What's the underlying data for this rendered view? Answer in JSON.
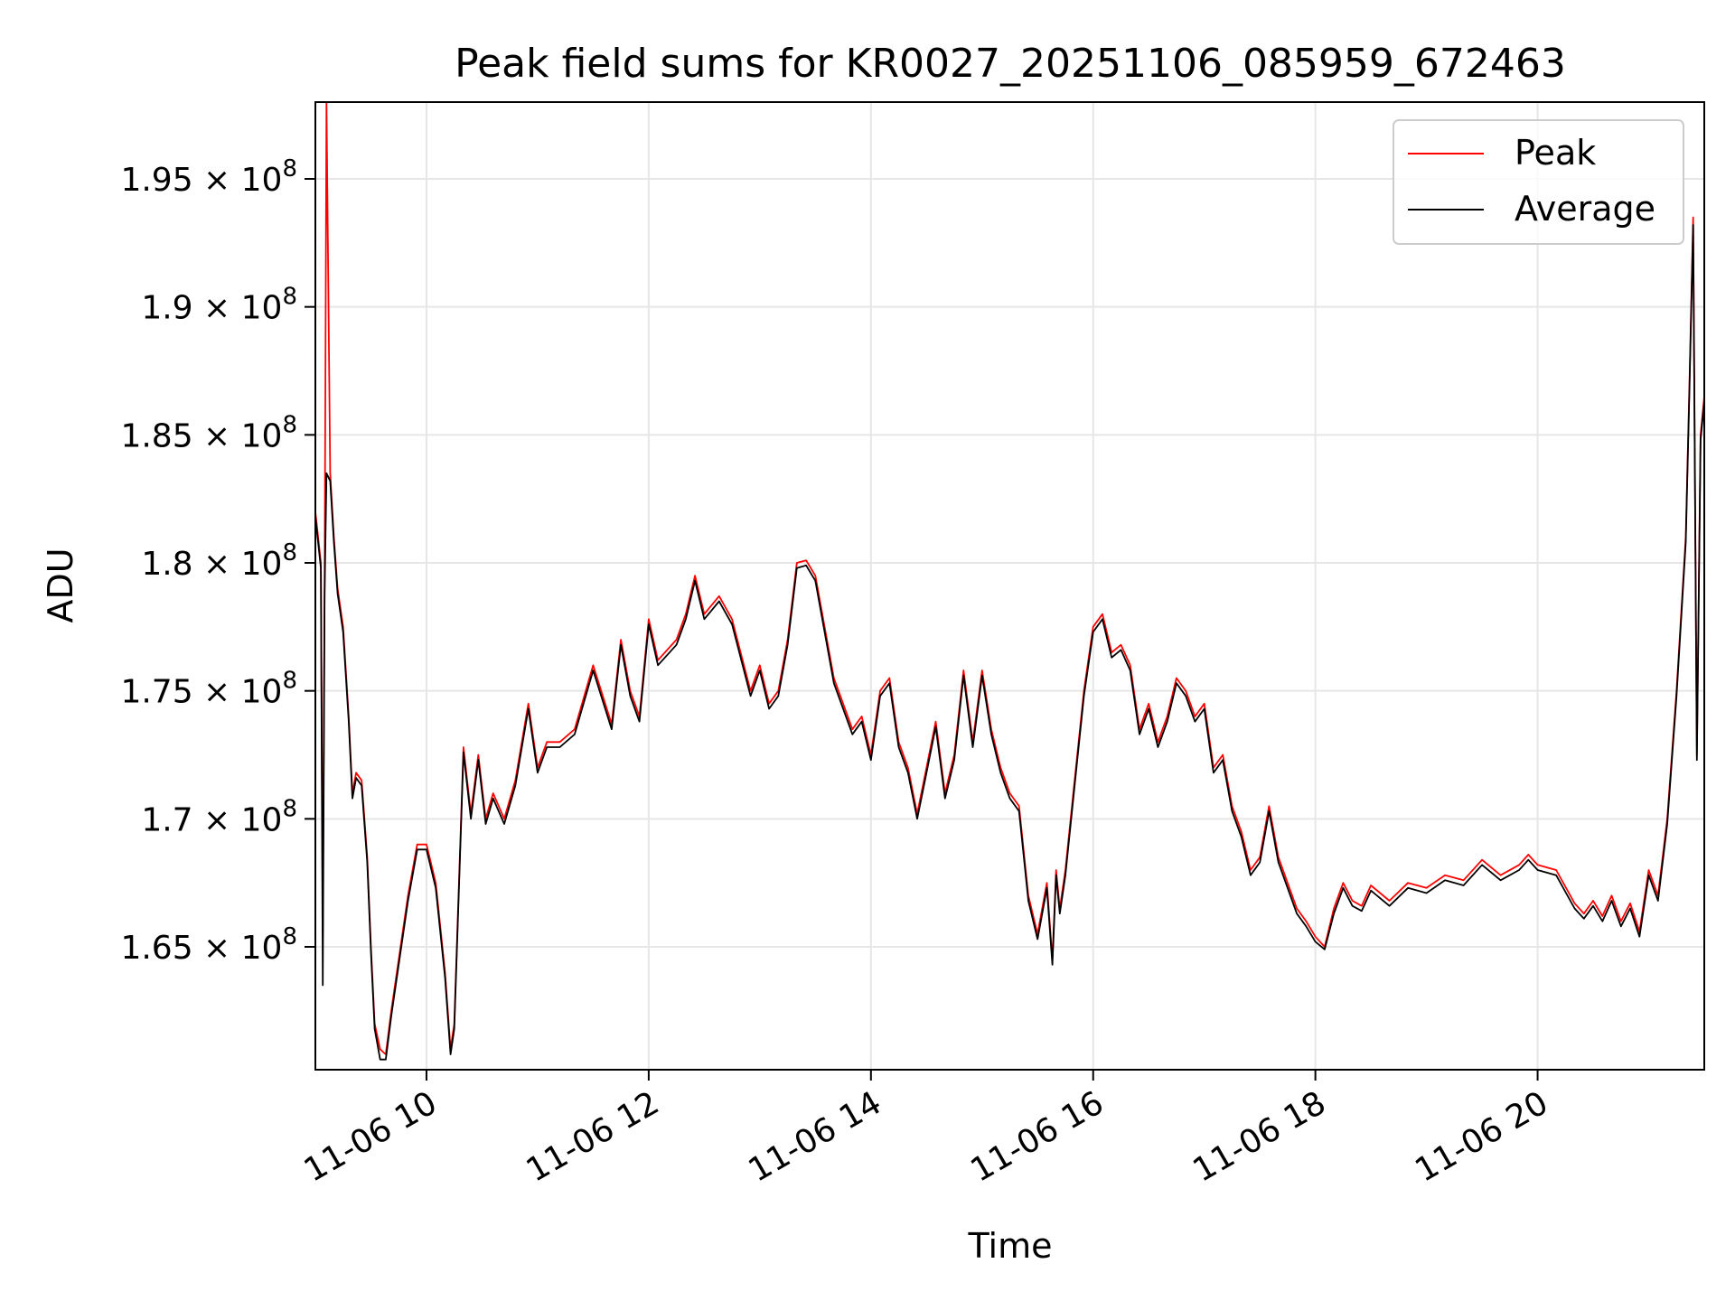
{
  "chart_data": {
    "type": "line",
    "title": "Peak field sums for KR0027_20251106_085959_672463",
    "xlabel": "Time",
    "ylabel": "ADU",
    "xlim": [
      "2025-11-06 09:00",
      "2025-11-06 21:30"
    ],
    "ylim": [
      160200000,
      198000000
    ],
    "x_ticks": [
      {
        "x": "2025-11-06 10:00",
        "label": "11-06 10"
      },
      {
        "x": "2025-11-06 12:00",
        "label": "11-06 12"
      },
      {
        "x": "2025-11-06 14:00",
        "label": "11-06 14"
      },
      {
        "x": "2025-11-06 16:00",
        "label": "11-06 16"
      },
      {
        "x": "2025-11-06 18:00",
        "label": "11-06 18"
      },
      {
        "x": "2025-11-06 20:00",
        "label": "11-06 20"
      }
    ],
    "y_ticks": [
      {
        "y": 165000000,
        "mant": "1.65",
        "exp": "8"
      },
      {
        "y": 170000000,
        "mant": "1.7",
        "exp": "8"
      },
      {
        "y": 175000000,
        "mant": "1.75",
        "exp": "8"
      },
      {
        "y": 180000000,
        "mant": "1.8",
        "exp": "8"
      },
      {
        "y": 185000000,
        "mant": "1.85",
        "exp": "8"
      },
      {
        "y": 190000000,
        "mant": "1.9",
        "exp": "8"
      },
      {
        "y": 195000000,
        "mant": "1.95",
        "exp": "8"
      }
    ],
    "grid": true,
    "legend_position": "top-right",
    "colors": {
      "peak": "#ff0000",
      "average": "#000000"
    },
    "series": [
      {
        "name": "Peak",
        "key": "peak",
        "x": [
          "2025-11-06 09:00",
          "2025-11-06 09:03",
          "2025-11-06 09:04",
          "2025-11-06 09:05",
          "2025-11-06 09:06",
          "2025-11-06 09:08",
          "2025-11-06 09:10",
          "2025-11-06 09:12",
          "2025-11-06 09:15",
          "2025-11-06 09:18",
          "2025-11-06 09:20",
          "2025-11-06 09:22",
          "2025-11-06 09:25",
          "2025-11-06 09:28",
          "2025-11-06 09:30",
          "2025-11-06 09:32",
          "2025-11-06 09:35",
          "2025-11-06 09:38",
          "2025-11-06 09:41",
          "2025-11-06 09:45",
          "2025-11-06 09:50",
          "2025-11-06 09:55",
          "2025-11-06 10:00",
          "2025-11-06 10:05",
          "2025-11-06 10:10",
          "2025-11-06 10:13",
          "2025-11-06 10:15",
          "2025-11-06 10:20",
          "2025-11-06 10:24",
          "2025-11-06 10:28",
          "2025-11-06 10:32",
          "2025-11-06 10:36",
          "2025-11-06 10:42",
          "2025-11-06 10:48",
          "2025-11-06 10:55",
          "2025-11-06 11:00",
          "2025-11-06 11:05",
          "2025-11-06 11:12",
          "2025-11-06 11:20",
          "2025-11-06 11:30",
          "2025-11-06 11:40",
          "2025-11-06 11:45",
          "2025-11-06 11:50",
          "2025-11-06 11:55",
          "2025-11-06 12:00",
          "2025-11-06 12:05",
          "2025-11-06 12:15",
          "2025-11-06 12:20",
          "2025-11-06 12:25",
          "2025-11-06 12:30",
          "2025-11-06 12:38",
          "2025-11-06 12:45",
          "2025-11-06 12:55",
          "2025-11-06 13:00",
          "2025-11-06 13:05",
          "2025-11-06 13:10",
          "2025-11-06 13:15",
          "2025-11-06 13:20",
          "2025-11-06 13:25",
          "2025-11-06 13:30",
          "2025-11-06 13:40",
          "2025-11-06 13:50",
          "2025-11-06 13:55",
          "2025-11-06 14:00",
          "2025-11-06 14:05",
          "2025-11-06 14:10",
          "2025-11-06 14:15",
          "2025-11-06 14:20",
          "2025-11-06 14:25",
          "2025-11-06 14:30",
          "2025-11-06 14:35",
          "2025-11-06 14:40",
          "2025-11-06 14:45",
          "2025-11-06 14:50",
          "2025-11-06 14:55",
          "2025-11-06 15:00",
          "2025-11-06 15:05",
          "2025-11-06 15:10",
          "2025-11-06 15:15",
          "2025-11-06 15:20",
          "2025-11-06 15:25",
          "2025-11-06 15:30",
          "2025-11-06 15:35",
          "2025-11-06 15:38",
          "2025-11-06 15:40",
          "2025-11-06 15:42",
          "2025-11-06 15:45",
          "2025-11-06 15:50",
          "2025-11-06 15:55",
          "2025-11-06 16:00",
          "2025-11-06 16:05",
          "2025-11-06 16:10",
          "2025-11-06 16:15",
          "2025-11-06 16:20",
          "2025-11-06 16:25",
          "2025-11-06 16:30",
          "2025-11-06 16:35",
          "2025-11-06 16:40",
          "2025-11-06 16:45",
          "2025-11-06 16:50",
          "2025-11-06 16:55",
          "2025-11-06 17:00",
          "2025-11-06 17:05",
          "2025-11-06 17:10",
          "2025-11-06 17:15",
          "2025-11-06 17:20",
          "2025-11-06 17:25",
          "2025-11-06 17:30",
          "2025-11-06 17:35",
          "2025-11-06 17:40",
          "2025-11-06 17:45",
          "2025-11-06 17:50",
          "2025-11-06 17:55",
          "2025-11-06 18:00",
          "2025-11-06 18:05",
          "2025-11-06 18:10",
          "2025-11-06 18:15",
          "2025-11-06 18:20",
          "2025-11-06 18:25",
          "2025-11-06 18:30",
          "2025-11-06 18:40",
          "2025-11-06 18:50",
          "2025-11-06 19:00",
          "2025-11-06 19:10",
          "2025-11-06 19:20",
          "2025-11-06 19:30",
          "2025-11-06 19:40",
          "2025-11-06 19:50",
          "2025-11-06 19:55",
          "2025-11-06 20:00",
          "2025-11-06 20:10",
          "2025-11-06 20:20",
          "2025-11-06 20:25",
          "2025-11-06 20:30",
          "2025-11-06 20:35",
          "2025-11-06 20:40",
          "2025-11-06 20:45",
          "2025-11-06 20:50",
          "2025-11-06 20:55",
          "2025-11-06 21:00",
          "2025-11-06 21:05",
          "2025-11-06 21:10",
          "2025-11-06 21:15",
          "2025-11-06 21:20",
          "2025-11-06 21:22",
          "2025-11-06 21:24",
          "2025-11-06 21:26",
          "2025-11-06 21:28",
          "2025-11-06 21:30"
        ],
        "y": [
          182000000,
          180000000,
          165500000,
          179000000,
          198000000,
          183500000,
          181000000,
          179000000,
          177500000,
          174000000,
          171000000,
          171800000,
          171500000,
          168500000,
          165000000,
          162000000,
          161000000,
          160800000,
          162500000,
          164500000,
          167000000,
          169000000,
          169000000,
          167500000,
          164000000,
          161000000,
          162000000,
          172800000,
          170200000,
          172500000,
          170000000,
          171000000,
          170000000,
          171500000,
          174500000,
          172000000,
          173000000,
          173000000,
          173500000,
          176000000,
          173700000,
          177000000,
          175000000,
          174000000,
          177800000,
          176200000,
          177000000,
          178000000,
          179500000,
          178000000,
          178700000,
          177800000,
          175000000,
          176000000,
          174500000,
          175000000,
          177000000,
          180000000,
          180100000,
          179500000,
          175500000,
          173500000,
          174000000,
          172500000,
          175000000,
          175500000,
          173000000,
          172000000,
          170200000,
          172000000,
          173800000,
          171000000,
          172500000,
          175800000,
          173000000,
          175800000,
          173500000,
          172000000,
          171000000,
          170500000,
          167000000,
          165500000,
          167500000,
          164500000,
          168000000,
          166500000,
          168000000,
          171500000,
          175000000,
          177500000,
          178000000,
          176500000,
          176800000,
          176000000,
          173500000,
          174500000,
          173000000,
          174000000,
          175500000,
          175000000,
          174000000,
          174500000,
          172000000,
          172500000,
          170500000,
          169500000,
          168000000,
          168500000,
          170500000,
          168500000,
          167500000,
          166500000,
          166000000,
          165400000,
          165000000,
          166500000,
          167500000,
          166800000,
          166600000,
          167400000,
          166800000,
          167500000,
          167300000,
          167800000,
          167600000,
          168400000,
          167800000,
          168200000,
          168600000,
          168200000,
          168000000,
          166700000,
          166300000,
          166800000,
          166200000,
          167000000,
          166000000,
          166700000,
          165600000,
          168000000,
          167000000,
          170000000,
          175000000,
          181000000,
          187000000,
          193500000,
          172500000,
          185000000,
          186500000
        ]
      },
      {
        "name": "Average",
        "key": "average",
        "x": [
          "2025-11-06 09:00",
          "2025-11-06 09:03",
          "2025-11-06 09:04",
          "2025-11-06 09:05",
          "2025-11-06 09:06",
          "2025-11-06 09:08",
          "2025-11-06 09:10",
          "2025-11-06 09:12",
          "2025-11-06 09:15",
          "2025-11-06 09:18",
          "2025-11-06 09:20",
          "2025-11-06 09:22",
          "2025-11-06 09:25",
          "2025-11-06 09:28",
          "2025-11-06 09:30",
          "2025-11-06 09:32",
          "2025-11-06 09:35",
          "2025-11-06 09:38",
          "2025-11-06 09:41",
          "2025-11-06 09:45",
          "2025-11-06 09:50",
          "2025-11-06 09:55",
          "2025-11-06 10:00",
          "2025-11-06 10:05",
          "2025-11-06 10:10",
          "2025-11-06 10:13",
          "2025-11-06 10:15",
          "2025-11-06 10:20",
          "2025-11-06 10:24",
          "2025-11-06 10:28",
          "2025-11-06 10:32",
          "2025-11-06 10:36",
          "2025-11-06 10:42",
          "2025-11-06 10:48",
          "2025-11-06 10:55",
          "2025-11-06 11:00",
          "2025-11-06 11:05",
          "2025-11-06 11:12",
          "2025-11-06 11:20",
          "2025-11-06 11:30",
          "2025-11-06 11:40",
          "2025-11-06 11:45",
          "2025-11-06 11:50",
          "2025-11-06 11:55",
          "2025-11-06 12:00",
          "2025-11-06 12:05",
          "2025-11-06 12:15",
          "2025-11-06 12:20",
          "2025-11-06 12:25",
          "2025-11-06 12:30",
          "2025-11-06 12:38",
          "2025-11-06 12:45",
          "2025-11-06 12:55",
          "2025-11-06 13:00",
          "2025-11-06 13:05",
          "2025-11-06 13:10",
          "2025-11-06 13:15",
          "2025-11-06 13:20",
          "2025-11-06 13:25",
          "2025-11-06 13:30",
          "2025-11-06 13:40",
          "2025-11-06 13:50",
          "2025-11-06 13:55",
          "2025-11-06 14:00",
          "2025-11-06 14:05",
          "2025-11-06 14:10",
          "2025-11-06 14:15",
          "2025-11-06 14:20",
          "2025-11-06 14:25",
          "2025-11-06 14:30",
          "2025-11-06 14:35",
          "2025-11-06 14:40",
          "2025-11-06 14:45",
          "2025-11-06 14:50",
          "2025-11-06 14:55",
          "2025-11-06 15:00",
          "2025-11-06 15:05",
          "2025-11-06 15:10",
          "2025-11-06 15:15",
          "2025-11-06 15:20",
          "2025-11-06 15:25",
          "2025-11-06 15:30",
          "2025-11-06 15:35",
          "2025-11-06 15:38",
          "2025-11-06 15:40",
          "2025-11-06 15:42",
          "2025-11-06 15:45",
          "2025-11-06 15:50",
          "2025-11-06 15:55",
          "2025-11-06 16:00",
          "2025-11-06 16:05",
          "2025-11-06 16:10",
          "2025-11-06 16:15",
          "2025-11-06 16:20",
          "2025-11-06 16:25",
          "2025-11-06 16:30",
          "2025-11-06 16:35",
          "2025-11-06 16:40",
          "2025-11-06 16:45",
          "2025-11-06 16:50",
          "2025-11-06 16:55",
          "2025-11-06 17:00",
          "2025-11-06 17:05",
          "2025-11-06 17:10",
          "2025-11-06 17:15",
          "2025-11-06 17:20",
          "2025-11-06 17:25",
          "2025-11-06 17:30",
          "2025-11-06 17:35",
          "2025-11-06 17:40",
          "2025-11-06 17:45",
          "2025-11-06 17:50",
          "2025-11-06 17:55",
          "2025-11-06 18:00",
          "2025-11-06 18:05",
          "2025-11-06 18:10",
          "2025-11-06 18:15",
          "2025-11-06 18:20",
          "2025-11-06 18:25",
          "2025-11-06 18:30",
          "2025-11-06 18:40",
          "2025-11-06 18:50",
          "2025-11-06 19:00",
          "2025-11-06 19:10",
          "2025-11-06 19:20",
          "2025-11-06 19:30",
          "2025-11-06 19:40",
          "2025-11-06 19:50",
          "2025-11-06 19:55",
          "2025-11-06 20:00",
          "2025-11-06 20:10",
          "2025-11-06 20:20",
          "2025-11-06 20:25",
          "2025-11-06 20:30",
          "2025-11-06 20:35",
          "2025-11-06 20:40",
          "2025-11-06 20:45",
          "2025-11-06 20:50",
          "2025-11-06 20:55",
          "2025-11-06 21:00",
          "2025-11-06 21:05",
          "2025-11-06 21:10",
          "2025-11-06 21:15",
          "2025-11-06 21:20",
          "2025-11-06 21:22",
          "2025-11-06 21:24",
          "2025-11-06 21:26",
          "2025-11-06 21:28",
          "2025-11-06 21:30"
        ],
        "y": [
          181800000,
          179800000,
          163500000,
          178800000,
          183500000,
          183200000,
          180800000,
          178800000,
          177300000,
          173800000,
          170800000,
          171600000,
          171300000,
          168300000,
          164800000,
          161800000,
          160600000,
          160600000,
          162300000,
          164300000,
          166800000,
          168800000,
          168800000,
          167300000,
          163800000,
          160800000,
          161800000,
          172600000,
          170000000,
          172300000,
          169800000,
          170800000,
          169800000,
          171300000,
          174300000,
          171800000,
          172800000,
          172800000,
          173300000,
          175800000,
          173500000,
          176800000,
          174800000,
          173800000,
          177600000,
          176000000,
          176800000,
          177800000,
          179300000,
          177800000,
          178500000,
          177600000,
          174800000,
          175800000,
          174300000,
          174800000,
          176800000,
          179800000,
          179900000,
          179300000,
          175300000,
          173300000,
          173800000,
          172300000,
          174800000,
          175300000,
          172800000,
          171800000,
          170000000,
          171800000,
          173600000,
          170800000,
          172300000,
          175600000,
          172800000,
          175600000,
          173300000,
          171800000,
          170800000,
          170300000,
          166800000,
          165300000,
          167300000,
          164300000,
          167800000,
          166300000,
          167800000,
          171300000,
          174800000,
          177300000,
          177800000,
          176300000,
          176600000,
          175800000,
          173300000,
          174300000,
          172800000,
          173800000,
          175300000,
          174800000,
          173800000,
          174300000,
          171800000,
          172300000,
          170300000,
          169300000,
          167800000,
          168300000,
          170300000,
          168300000,
          167300000,
          166300000,
          165800000,
          165200000,
          164900000,
          166300000,
          167300000,
          166600000,
          166400000,
          167200000,
          166600000,
          167300000,
          167100000,
          167600000,
          167400000,
          168200000,
          167600000,
          168000000,
          168400000,
          168000000,
          167800000,
          166500000,
          166100000,
          166600000,
          166000000,
          166800000,
          165800000,
          166500000,
          165400000,
          167800000,
          166800000,
          169800000,
          174800000,
          180800000,
          186800000,
          193200000,
          172300000,
          184800000,
          186300000
        ]
      }
    ]
  }
}
